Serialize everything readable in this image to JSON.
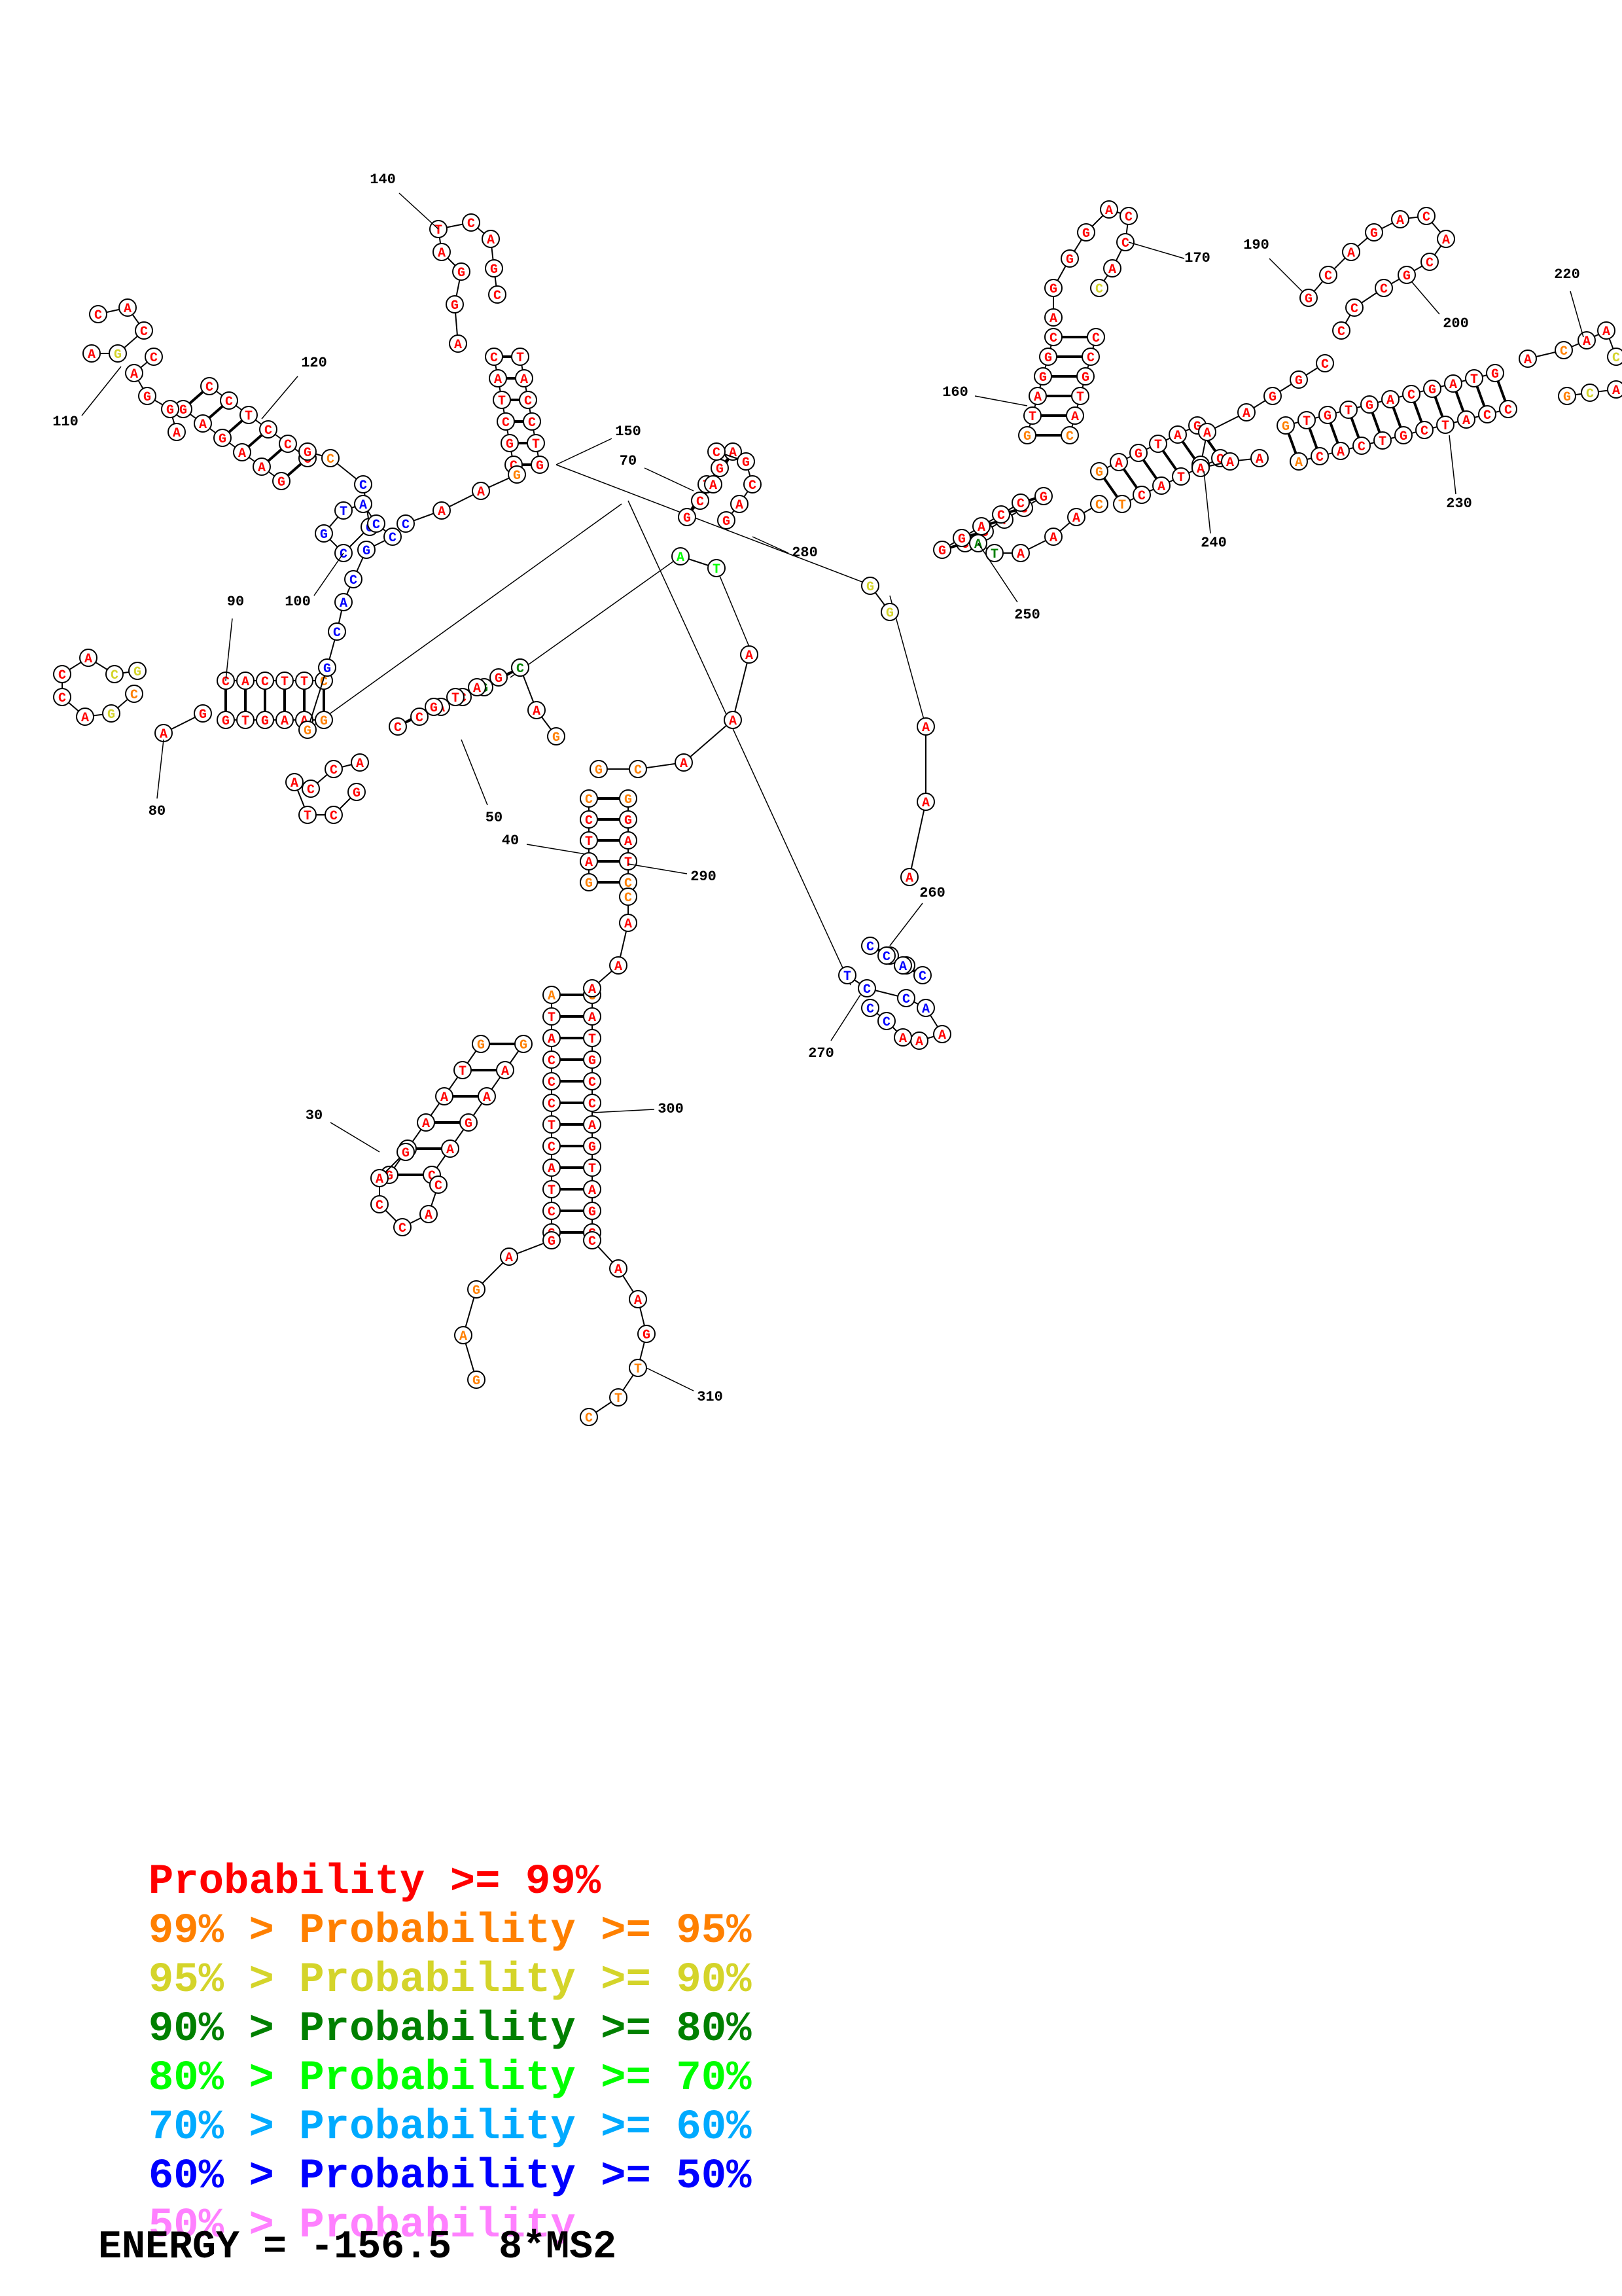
{
  "structure": {
    "sequence_segments": [
      {
        "id": "s1",
        "label": "A G G A"
      },
      {
        "id": "helix_24",
        "label": "C G C T A T C T A C C C A A C A A T C A A C G A C"
      }
    ],
    "position_labels": [
      "30",
      "40",
      "50",
      "70",
      "80",
      "90",
      "100",
      "110",
      "120",
      "140",
      "150",
      "160",
      "170",
      "190",
      "200",
      "220",
      "230",
      "240",
      "250",
      "260",
      "270",
      "280",
      "290",
      "300",
      "310"
    ]
  },
  "legend": [
    {
      "prefix": "",
      "label": "Probability >= 99%",
      "color": "#ff0000"
    },
    {
      "prefix": "99% > ",
      "label": "Probability >= 95%",
      "color": "#ff8000"
    },
    {
      "prefix": "95% > ",
      "label": "Probability >= 90%",
      "color": "#d4d42a"
    },
    {
      "prefix": "90% > ",
      "label": "Probability >= 80%",
      "color": "#008000"
    },
    {
      "prefix": "80% > ",
      "label": "Probability >= 70%",
      "color": "#00ff00"
    },
    {
      "prefix": "70% > ",
      "label": "Probability >= 60%",
      "color": "#00aaff"
    },
    {
      "prefix": "60% > ",
      "label": "Probability >= 50%",
      "color": "#0000ff"
    },
    {
      "prefix": "50% > ",
      "label": "Probability",
      "color": "#ff80ff"
    }
  ],
  "energy": {
    "text": "ENERGY = -156.5  8*MS2"
  },
  "colors": {
    "p99": "#ff0000",
    "p95": "#ff8000",
    "p90": "#d4d42a",
    "p80": "#008000",
    "p70": "#00ff00",
    "p60": "#00aaff",
    "p50": "#0000ff",
    "plow": "#ff80ff"
  }
}
